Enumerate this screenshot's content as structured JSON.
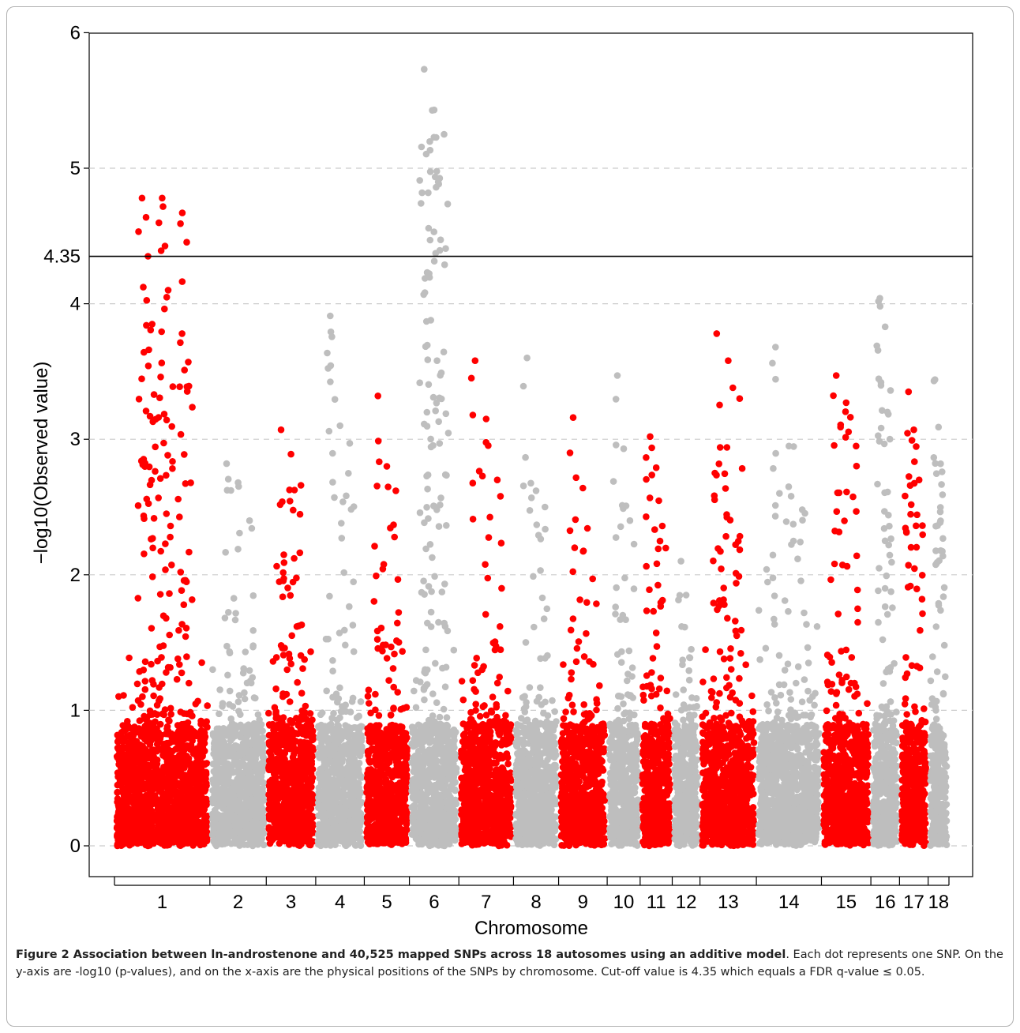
{
  "chart_data": {
    "type": "scatter",
    "title": "",
    "xlabel": "Chromosome",
    "ylabel": "−log10(Observed value)",
    "ylim": [
      -0.2,
      6.0
    ],
    "yticks": [
      0,
      1,
      2,
      3,
      4,
      5,
      6
    ],
    "threshold": {
      "value": 4.35,
      "label": "4.35"
    },
    "grid": true,
    "colors": {
      "odd": "#ff0000",
      "even": "#bebebe",
      "threshold": "#000000",
      "grid": "#cccccc"
    },
    "chromosomes": [
      {
        "label": "1",
        "start": 0.0,
        "end": 0.11,
        "color": "red",
        "peaks": [
          4.78,
          4.78,
          4.67,
          4.35,
          4.1,
          3.57,
          3.33
        ]
      },
      {
        "label": "2",
        "start": 0.11,
        "end": 0.175,
        "color": "gray",
        "peaks": [
          2.82,
          2.68,
          2.4
        ]
      },
      {
        "label": "3",
        "start": 0.175,
        "end": 0.232,
        "color": "red",
        "peaks": [
          3.07,
          2.89,
          2.66,
          2.09
        ]
      },
      {
        "label": "4",
        "start": 0.232,
        "end": 0.288,
        "color": "gray",
        "peaks": [
          3.91,
          3.1,
          2.97
        ]
      },
      {
        "label": "5",
        "start": 0.288,
        "end": 0.34,
        "color": "red",
        "peaks": [
          3.32,
          2.8,
          2.62
        ]
      },
      {
        "label": "6",
        "start": 0.34,
        "end": 0.397,
        "color": "gray",
        "peaks": [
          5.73,
          5.43,
          5.25,
          4.23,
          3.58
        ]
      },
      {
        "label": "7",
        "start": 0.397,
        "end": 0.46,
        "color": "red",
        "peaks": [
          3.58,
          3.15,
          2.7
        ]
      },
      {
        "label": "8",
        "start": 0.46,
        "end": 0.512,
        "color": "gray",
        "peaks": [
          3.6,
          2.62,
          2.5
        ]
      },
      {
        "label": "9",
        "start": 0.512,
        "end": 0.568,
        "color": "red",
        "peaks": [
          3.16,
          2.64,
          1.97
        ]
      },
      {
        "label": "10",
        "start": 0.568,
        "end": 0.606,
        "color": "gray",
        "peaks": [
          3.47,
          2.93,
          2.4
        ]
      },
      {
        "label": "11",
        "start": 0.606,
        "end": 0.643,
        "color": "red",
        "peaks": [
          3.02,
          2.79,
          2.36
        ]
      },
      {
        "label": "12",
        "start": 0.643,
        "end": 0.675,
        "color": "gray",
        "peaks": [
          2.1,
          1.85,
          1.45
        ]
      },
      {
        "label": "13",
        "start": 0.675,
        "end": 0.74,
        "color": "red",
        "peaks": [
          3.78,
          3.58,
          3.3,
          2.94
        ]
      },
      {
        "label": "14",
        "start": 0.74,
        "end": 0.815,
        "color": "gray",
        "peaks": [
          3.68,
          2.95,
          2.48
        ]
      },
      {
        "label": "15",
        "start": 0.815,
        "end": 0.872,
        "color": "red",
        "peaks": [
          3.47,
          3.27,
          2.95
        ]
      },
      {
        "label": "16",
        "start": 0.872,
        "end": 0.905,
        "color": "gray",
        "peaks": [
          4.04,
          3.83,
          3.36
        ]
      },
      {
        "label": "17",
        "start": 0.905,
        "end": 0.938,
        "color": "red",
        "peaks": [
          3.35,
          3.07,
          2.7
        ]
      },
      {
        "label": "18",
        "start": 0.938,
        "end": 0.962,
        "color": "gray",
        "peaks": [
          3.44,
          3.09,
          2.76
        ]
      }
    ]
  },
  "caption": {
    "label": "Figure 2",
    "bold_title": "Association between ln-androstenone and 40,525 mapped SNPs across 18 autosomes using an additive model",
    "text": ". Each dot represents one SNP. On the y-axis are -log10 (p-values), and on the x-axis are the physical positions of the SNPs by chromosome. Cut-off value is 4.35 which equals a FDR q-value ≤ 0.05."
  }
}
